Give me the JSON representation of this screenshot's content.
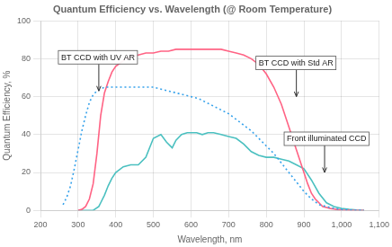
{
  "chart_data": {
    "type": "line",
    "title": "Quantum Efficiency vs. Wavelength (@ Room Temperature)",
    "x_label": "Wavelength, nm",
    "y_label": "Quantum Efficiency, %",
    "xlim": [
      200,
      1100
    ],
    "ylim": [
      0,
      100
    ],
    "xticks": [
      200,
      300,
      400,
      500,
      600,
      700,
      800,
      900,
      1000,
      1100
    ],
    "yticks": [
      0,
      20,
      40,
      60,
      80,
      100
    ],
    "grid": true,
    "series": [
      {
        "name": "BT CCD with UV AR",
        "line_style": "dotted",
        "x": [
          260,
          270,
          280,
          290,
          300,
          310,
          320,
          330,
          340,
          350,
          360,
          370,
          380,
          390,
          400,
          420,
          440,
          460,
          480,
          500,
          520,
          540,
          560,
          580,
          600,
          620,
          640,
          660,
          680,
          700,
          720,
          740,
          760,
          780,
          800,
          820,
          840,
          860,
          880,
          900,
          920,
          940,
          960,
          980,
          1000,
          1020,
          1040,
          1060
        ],
        "values": [
          3,
          7,
          13,
          22,
          32,
          42,
          50,
          57,
          61,
          63,
          64,
          65,
          65,
          65,
          65,
          65,
          65,
          65,
          65,
          65,
          64,
          63,
          62,
          61,
          60,
          59,
          57,
          55,
          53,
          51,
          48,
          45,
          42,
          38,
          34,
          30,
          25,
          20,
          15,
          10,
          6,
          3,
          2,
          1,
          0.5,
          0.2,
          0.1,
          0
        ]
      },
      {
        "name": "BT CCD with Std AR",
        "line_style": "solid",
        "x": [
          300,
          310,
          320,
          330,
          340,
          350,
          360,
          370,
          380,
          390,
          400,
          420,
          440,
          460,
          480,
          500,
          520,
          540,
          560,
          580,
          600,
          620,
          640,
          660,
          680,
          700,
          720,
          740,
          760,
          780,
          800,
          820,
          840,
          860,
          880,
          900,
          910,
          920,
          930,
          940,
          950,
          960,
          970,
          980,
          990,
          1000,
          1010,
          1020,
          1040,
          1060
        ],
        "values": [
          0,
          0.5,
          2,
          6,
          14,
          30,
          50,
          62,
          68,
          73,
          76,
          79,
          81,
          82,
          83,
          83,
          84,
          84,
          85,
          85,
          85,
          85,
          85,
          85,
          85,
          84,
          83,
          82,
          80,
          77,
          72,
          65,
          56,
          44,
          32,
          20,
          14,
          9,
          6,
          4,
          2,
          1.5,
          1,
          0.7,
          0.4,
          0.2,
          0.1,
          0.05,
          0,
          0
        ]
      },
      {
        "name": "Front illuminated CCD",
        "line_style": "solid",
        "x": [
          300,
          320,
          340,
          355,
          360,
          370,
          380,
          390,
          400,
          420,
          440,
          460,
          480,
          500,
          520,
          535,
          550,
          560,
          575,
          590,
          600,
          615,
          630,
          645,
          660,
          680,
          700,
          720,
          740,
          760,
          780,
          800,
          820,
          840,
          860,
          880,
          900,
          920,
          940,
          960,
          980,
          1000,
          1020,
          1040,
          1060
        ],
        "values": [
          0,
          0,
          0,
          2,
          4,
          8,
          13,
          17,
          20,
          23,
          24,
          24,
          28,
          38,
          40,
          36,
          33,
          37,
          40,
          41,
          41,
          41,
          40,
          41,
          41,
          40,
          39,
          38,
          35,
          31,
          29,
          28,
          28,
          27,
          26,
          24,
          22,
          16,
          9,
          4,
          2,
          1,
          0.5,
          0.2,
          0
        ]
      }
    ],
    "annotations": [
      {
        "text": "BT CCD with UV AR",
        "x": 355,
        "y": 63
      },
      {
        "text": "BT CCD with Std AR",
        "x": 880,
        "y": 60
      },
      {
        "text": "Front illuminated CCD",
        "x": 955,
        "y": 20
      }
    ]
  }
}
